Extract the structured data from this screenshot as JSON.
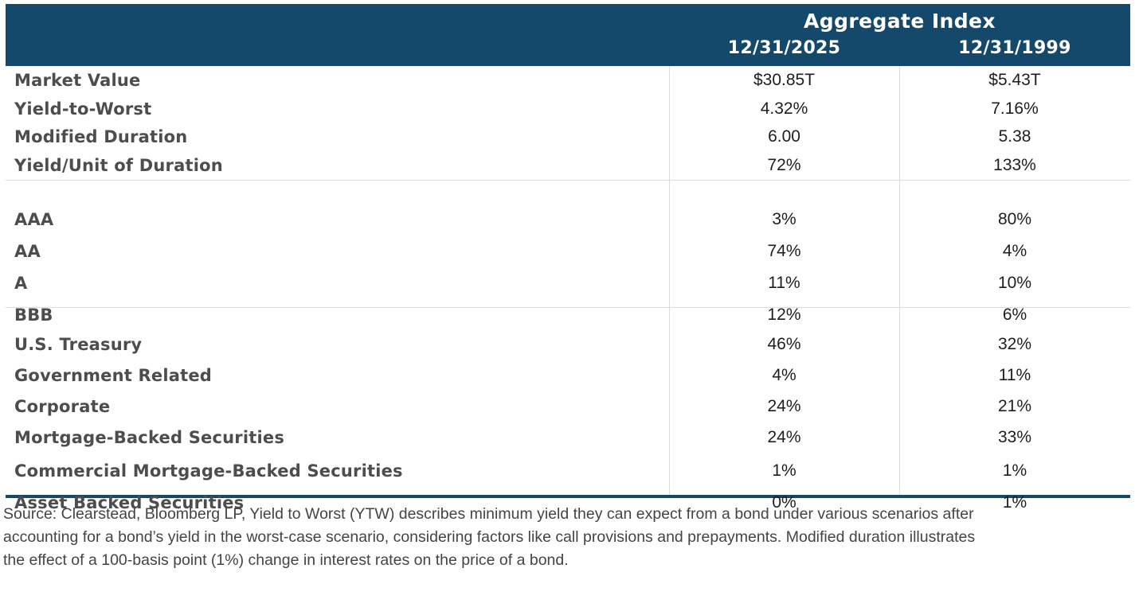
{
  "chart_data": {
    "type": "table",
    "title": "Aggregate Index",
    "column_headers": [
      "12/31/2025",
      "12/31/1999"
    ],
    "sections": [
      {
        "rows": [
          {
            "label": "Market Value",
            "values": [
              "$30.85T",
              "$5.43T"
            ]
          },
          {
            "label": "Yield-to-Worst",
            "values": [
              "4.32%",
              "7.16%"
            ]
          },
          {
            "label": "Modified Duration",
            "values": [
              "6.00",
              "5.38"
            ]
          },
          {
            "label": "Yield/Unit of Duration",
            "values": [
              "72%",
              "133%"
            ]
          }
        ]
      },
      {
        "rows": [
          {
            "label": "AAA",
            "values": [
              "3%",
              "80%"
            ]
          },
          {
            "label": "AA",
            "values": [
              "74%",
              "4%"
            ]
          },
          {
            "label": "A",
            "values": [
              "11%",
              "10%"
            ]
          },
          {
            "label": "BBB",
            "values": [
              "12%",
              "6%"
            ]
          }
        ]
      },
      {
        "rows": [
          {
            "label": "U.S. Treasury",
            "values": [
              "46%",
              "32%"
            ]
          },
          {
            "label": "Government Related",
            "values": [
              "4%",
              "11%"
            ]
          },
          {
            "label": "Corporate",
            "values": [
              "24%",
              "21%"
            ]
          },
          {
            "label": "Mortgage-Backed Securities",
            "values": [
              "24%",
              "33%"
            ]
          },
          {
            "label": "Commercial Mortgage-Backed Securities",
            "values": [
              "1%",
              "1%"
            ]
          },
          {
            "label": "Asset Backed Securities",
            "values": [
              "0%",
              "1%"
            ]
          }
        ]
      }
    ],
    "footnote": "Source: Clearstead, Bloomberg LP, Yield to Worst (YTW) describes minimum yield they can expect from a bond under various scenarios after accounting for a bond’s yield in the worst-case scenario, considering factors like call provisions and prepayments. Modified duration illustrates the effect of a 100-basis point (1%) change in interest rates on the price of a bond."
  },
  "footnote_lines": {
    "0": "Source: Clearstead, Bloomberg LP, Yield to Worst (YTW) describes minimum yield they can expect from a bond under various scenarios after",
    "1": "accounting for a bond’s yield in the worst-case scenario, considering factors like call provisions and prepayments. Modified duration illustrates",
    "2": "the effect of a 100-basis point (1%) change in interest rates on the price of a bond."
  },
  "colors": {
    "header_background": "#15496B",
    "header_text": "#FFFFFF",
    "bottom_border": "#15496B",
    "section_divider": "#DCDCDC",
    "label_text": "#4D4D4D",
    "value_text": "#1E1E1E",
    "footnote_text": "#444444"
  }
}
